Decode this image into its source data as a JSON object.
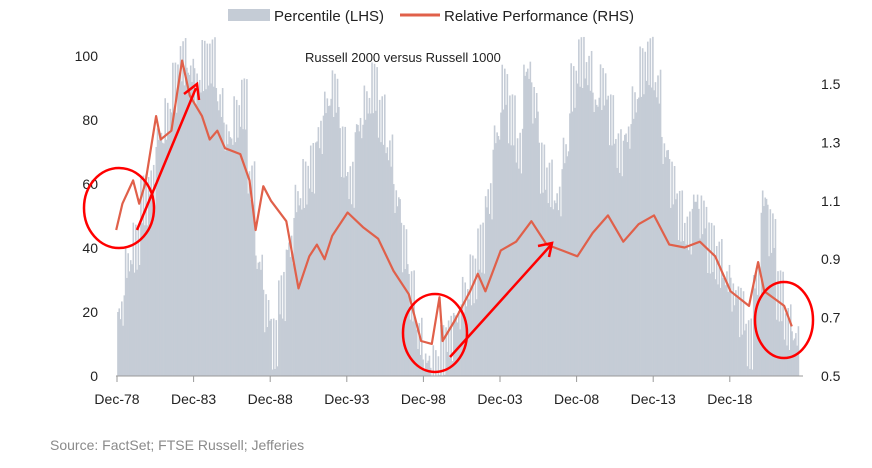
{
  "chart_data": {
    "type": "bar+line",
    "title": "Russell 2000 versus Russell 1000",
    "source": "Source: FactSet; FTSE Russell; Jefferies",
    "legend": {
      "placement": "top",
      "entries": [
        "Percentile (LHS)",
        "Relative Performance (RHS)"
      ]
    },
    "x_tick_labels": [
      "Dec-78",
      "Dec-83",
      "Dec-88",
      "Dec-93",
      "Dec-98",
      "Dec-03",
      "Dec-08",
      "Dec-13",
      "Dec-18"
    ],
    "y_left": {
      "ylim": [
        0,
        100
      ],
      "ticks": [
        "0",
        "20",
        "40",
        "60",
        "80",
        "100"
      ]
    },
    "y_right": {
      "ylim": [
        0.5,
        1.5
      ],
      "ticks": [
        "0.5",
        "0.7",
        "0.9",
        "1.1",
        "1.3",
        "1.5"
      ]
    },
    "colors": {
      "percentile": "#c5ccd6",
      "relative": "#e0604a",
      "annotation": "#ff0000"
    },
    "series": [
      {
        "name": "Percentile (LHS)",
        "type": "bar",
        "axis": "left",
        "start_year": 1979.0,
        "step_years": 0.5,
        "values": [
          20,
          35,
          40,
          55,
          60,
          75,
          80,
          90,
          98,
          95,
          90,
          97,
          98,
          85,
          75,
          80,
          85,
          60,
          35,
          20,
          10,
          25,
          40,
          55,
          60,
          65,
          75,
          85,
          88,
          70,
          60,
          78,
          85,
          90,
          80,
          70,
          55,
          40,
          25,
          12,
          5,
          3,
          8,
          12,
          18,
          25,
          30,
          40,
          55,
          75,
          90,
          80,
          70,
          95,
          85,
          65,
          60,
          55,
          70,
          90,
          98,
          95,
          85,
          90,
          80,
          70,
          75,
          85,
          95,
          98,
          90,
          70,
          60,
          50,
          45,
          55,
          50,
          40,
          35,
          30,
          25,
          20,
          10,
          30,
          55,
          45,
          25,
          15,
          12
        ]
      },
      {
        "name": "Relative Performance (RHS)",
        "type": "line",
        "axis": "right",
        "x": [
          1978.9,
          1979.3,
          1980.0,
          1980.4,
          1980.8,
          1981.5,
          1981.8,
          1982.5,
          1983.2,
          1983.7,
          1984.5,
          1985,
          1985.5,
          1986,
          1987,
          1987.6,
          1988,
          1988.5,
          1989,
          1990,
          1990.8,
          1991.5,
          1992,
          1992.5,
          1993,
          1994,
          1995,
          1996,
          1997,
          1998,
          1998.8,
          1999.5,
          2000,
          2000.2,
          2001,
          2002,
          2002.5,
          2003,
          2004,
          2005,
          2006,
          2007,
          2008,
          2009,
          2010,
          2011,
          2012,
          2013,
          2014,
          2015,
          2016,
          2017,
          2018,
          2019,
          2020.2,
          2020.8,
          2021.2,
          2022,
          2022.5,
          2023
        ],
        "values": [
          1.0,
          1.09,
          1.17,
          1.09,
          1.16,
          1.39,
          1.31,
          1.34,
          1.58,
          1.46,
          1.39,
          1.31,
          1.34,
          1.28,
          1.26,
          1.17,
          1.0,
          1.15,
          1.1,
          1.03,
          0.8,
          0.91,
          0.95,
          0.9,
          0.98,
          1.06,
          1.01,
          0.97,
          0.86,
          0.78,
          0.62,
          0.61,
          0.77,
          0.62,
          0.69,
          0.79,
          0.85,
          0.79,
          0.93,
          0.96,
          1.03,
          0.95,
          0.93,
          0.91,
          0.99,
          1.05,
          0.96,
          1.02,
          1.05,
          0.95,
          0.94,
          0.96,
          0.91,
          0.79,
          0.74,
          0.89,
          0.79,
          0.76,
          0.74,
          0.67
        ]
      }
    ]
  }
}
